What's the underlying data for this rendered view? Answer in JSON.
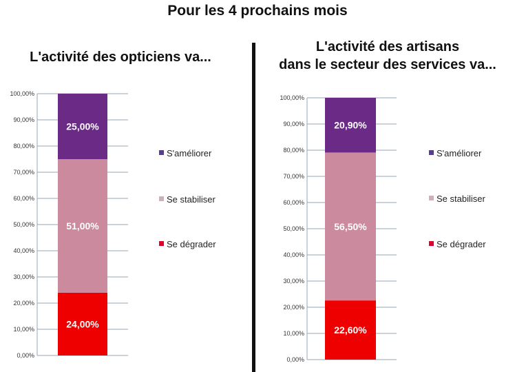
{
  "header": {
    "title": "Pour les 4 prochains mois"
  },
  "colors": {
    "ameliorer": "#6a2a86",
    "stabiliser": "#cc8a9e",
    "degrader": "#ee0000",
    "ameliorer_marker": "#5b3b8c",
    "stabiliser_marker": "#cdb0ba",
    "degrader_marker": "#e1002d"
  },
  "chart_data": [
    {
      "type": "bar",
      "stacked": true,
      "title": "L'activité des opticiens va...",
      "ylim": [
        0,
        100
      ],
      "yticks": [
        "0,00%",
        "10,00%",
        "20,00%",
        "30,00%",
        "40,00%",
        "50,00%",
        "60,00%",
        "70,00%",
        "80,00%",
        "90,00%",
        "100,00%"
      ],
      "series": [
        {
          "name": "Se dégrader",
          "value": 24.0,
          "label": "24,00%"
        },
        {
          "name": "Se stabiliser",
          "value": 51.0,
          "label": "51,00%"
        },
        {
          "name": "S'améliorer",
          "value": 25.0,
          "label": "25,00%"
        }
      ],
      "legend": "right"
    },
    {
      "type": "bar",
      "stacked": true,
      "title": "L'activité des artisans\ndans le secteur des services va...",
      "ylim": [
        0,
        100
      ],
      "yticks": [
        "0,00%",
        "10,00%",
        "20,00%",
        "30,00%",
        "40,00%",
        "50,00%",
        "60,00%",
        "70,00%",
        "80,00%",
        "90,00%",
        "100,00%"
      ],
      "series": [
        {
          "name": "Se dégrader",
          "value": 22.6,
          "label": "22,60%"
        },
        {
          "name": "Se stabiliser",
          "value": 56.5,
          "label": "56,50%"
        },
        {
          "name": "S'améliorer",
          "value": 20.9,
          "label": "20,90%"
        }
      ],
      "legend": "right"
    }
  ]
}
